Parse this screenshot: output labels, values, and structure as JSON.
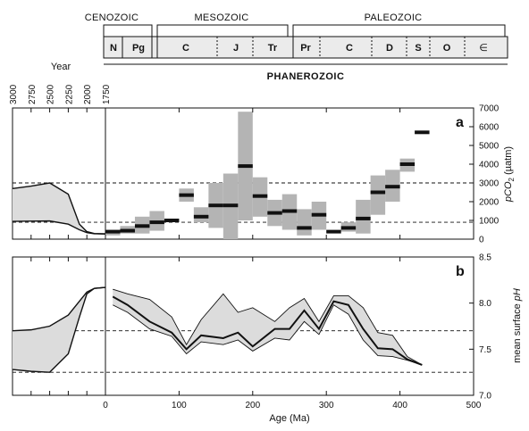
{
  "timescale": {
    "eras": [
      "CENOZOIC",
      "MESOZOIC",
      "PALEOZOIC"
    ],
    "periods": [
      "N",
      "Pg",
      "C",
      "J",
      "Tr",
      "Pr",
      "C",
      "D",
      "S",
      "O",
      "∈"
    ],
    "eon": "PHANEROZOIC"
  },
  "colors": {
    "box_fill": "#b4b4b4",
    "band_fill": "#dcdcdc",
    "ink": "#111111"
  },
  "chart_data": [
    {
      "panel_label": "a",
      "type": "bar",
      "xlabel": "Age (Ma)",
      "ylabel_pre": "pCO",
      "ylabel_sub": "2",
      "ylabel_post": " (µatm)",
      "xlim": [
        0,
        500
      ],
      "ylim": [
        0,
        7000
      ],
      "xticks": [
        "0",
        "100",
        "200",
        "300",
        "400",
        "500"
      ],
      "yticks": [
        "0",
        "1000",
        "2000",
        "3000",
        "4000",
        "5000",
        "6000",
        "7000"
      ],
      "reference_lines": [
        3000,
        900
      ],
      "estimates": [
        {
          "x0": 0,
          "x1": 20,
          "value": 400,
          "low": 200,
          "high": 500
        },
        {
          "x0": 20,
          "x1": 40,
          "value": 450,
          "low": 300,
          "high": 700
        },
        {
          "x0": 40,
          "x1": 60,
          "value": 700,
          "low": 300,
          "high": 1200
        },
        {
          "x0": 60,
          "x1": 80,
          "value": 900,
          "low": 450,
          "high": 1500
        },
        {
          "x0": 80,
          "x1": 100,
          "value": 1000,
          "low": null,
          "high": null
        },
        {
          "x0": 100,
          "x1": 120,
          "value": 2350,
          "low": 2000,
          "high": 2700
        },
        {
          "x0": 120,
          "x1": 140,
          "value": 1200,
          "low": 900,
          "high": 1700
        },
        {
          "x0": 140,
          "x1": 160,
          "value": 1800,
          "low": 600,
          "high": 3000
        },
        {
          "x0": 160,
          "x1": 180,
          "value": 1800,
          "low": 0,
          "high": 3500
        },
        {
          "x0": 180,
          "x1": 200,
          "value": 3900,
          "low": 1000,
          "high": 6800
        },
        {
          "x0": 200,
          "x1": 220,
          "value": 2300,
          "low": 1200,
          "high": 3300
        },
        {
          "x0": 220,
          "x1": 240,
          "value": 1400,
          "low": 700,
          "high": 2100
        },
        {
          "x0": 240,
          "x1": 260,
          "value": 1500,
          "low": 500,
          "high": 2400
        },
        {
          "x0": 260,
          "x1": 280,
          "value": 600,
          "low": 200,
          "high": 1600
        },
        {
          "x0": 280,
          "x1": 300,
          "value": 1300,
          "low": 500,
          "high": 2000
        },
        {
          "x0": 300,
          "x1": 320,
          "value": 400,
          "low": null,
          "high": null
        },
        {
          "x0": 320,
          "x1": 340,
          "value": 600,
          "low": 400,
          "high": 900
        },
        {
          "x0": 340,
          "x1": 360,
          "value": 1100,
          "low": 300,
          "high": 2100
        },
        {
          "x0": 360,
          "x1": 380,
          "value": 2500,
          "low": 1300,
          "high": 3400
        },
        {
          "x0": 380,
          "x1": 400,
          "value": 2800,
          "low": 2000,
          "high": 3700
        },
        {
          "x0": 400,
          "x1": 420,
          "value": 4000,
          "low": 3600,
          "high": 4300
        },
        {
          "x0": 420,
          "x1": 440,
          "value": 5700,
          "low": null,
          "high": null
        }
      ],
      "inset": {
        "xlabel": "Year",
        "xticks": [
          "3000",
          "2750",
          "2500",
          "2250",
          "2000",
          "1750"
        ],
        "xlim": [
          3000,
          1750
        ],
        "upper": [
          [
            3000,
            2700
          ],
          [
            2750,
            2830
          ],
          [
            2500,
            3000
          ],
          [
            2250,
            2400
          ],
          [
            2100,
            800
          ],
          [
            2000,
            400
          ],
          [
            1900,
            300
          ],
          [
            1750,
            280
          ]
        ],
        "lower": [
          [
            3000,
            950
          ],
          [
            2750,
            960
          ],
          [
            2500,
            970
          ],
          [
            2250,
            800
          ],
          [
            2100,
            500
          ],
          [
            2000,
            350
          ],
          [
            1900,
            290
          ],
          [
            1750,
            280
          ]
        ]
      }
    },
    {
      "panel_label": "b",
      "type": "line",
      "xlabel": "Age (Ma)",
      "ylabel_pre": "mean surface ",
      "ylabel_italic": "pH",
      "xlim": [
        0,
        500
      ],
      "ylim": [
        7.0,
        8.5
      ],
      "xticks": [
        "0",
        "100",
        "200",
        "300",
        "400",
        "500"
      ],
      "yticks": [
        "7.0",
        "7.5",
        "8.0",
        "8.5"
      ],
      "reference_lines": [
        7.7,
        7.25
      ],
      "x": [
        10,
        30,
        60,
        90,
        110,
        130,
        160,
        180,
        200,
        230,
        250,
        270,
        290,
        310,
        330,
        350,
        370,
        390,
        410,
        430
      ],
      "series": [
        {
          "role": "mean",
          "values": [
            8.07,
            7.98,
            7.8,
            7.68,
            7.5,
            7.65,
            7.62,
            7.68,
            7.53,
            7.72,
            7.72,
            7.92,
            7.72,
            8.02,
            7.98,
            7.72,
            7.51,
            7.5,
            7.39,
            7.33
          ]
        },
        {
          "role": "upper",
          "values": [
            8.15,
            8.1,
            8.04,
            7.85,
            7.55,
            7.82,
            8.1,
            7.9,
            7.95,
            7.8,
            7.95,
            8.05,
            7.8,
            8.08,
            8.08,
            7.95,
            7.68,
            7.65,
            7.42,
            7.33
          ]
        },
        {
          "role": "lower",
          "values": [
            7.98,
            7.9,
            7.72,
            7.64,
            7.45,
            7.58,
            7.55,
            7.6,
            7.48,
            7.62,
            7.6,
            7.8,
            7.66,
            7.98,
            7.88,
            7.6,
            7.43,
            7.42,
            7.38,
            7.33
          ]
        }
      ],
      "inset": {
        "xlim": [
          3000,
          1750
        ],
        "upper": [
          [
            3000,
            7.7
          ],
          [
            2750,
            7.71
          ],
          [
            2500,
            7.75
          ],
          [
            2250,
            7.87
          ],
          [
            2100,
            8.02
          ],
          [
            2000,
            8.12
          ],
          [
            1900,
            8.16
          ],
          [
            1750,
            8.17
          ]
        ],
        "lower": [
          [
            3000,
            7.28
          ],
          [
            2750,
            7.26
          ],
          [
            2500,
            7.25
          ],
          [
            2250,
            7.45
          ],
          [
            2100,
            7.85
          ],
          [
            2000,
            8.1
          ],
          [
            1900,
            8.16
          ],
          [
            1750,
            8.17
          ]
        ]
      }
    }
  ]
}
